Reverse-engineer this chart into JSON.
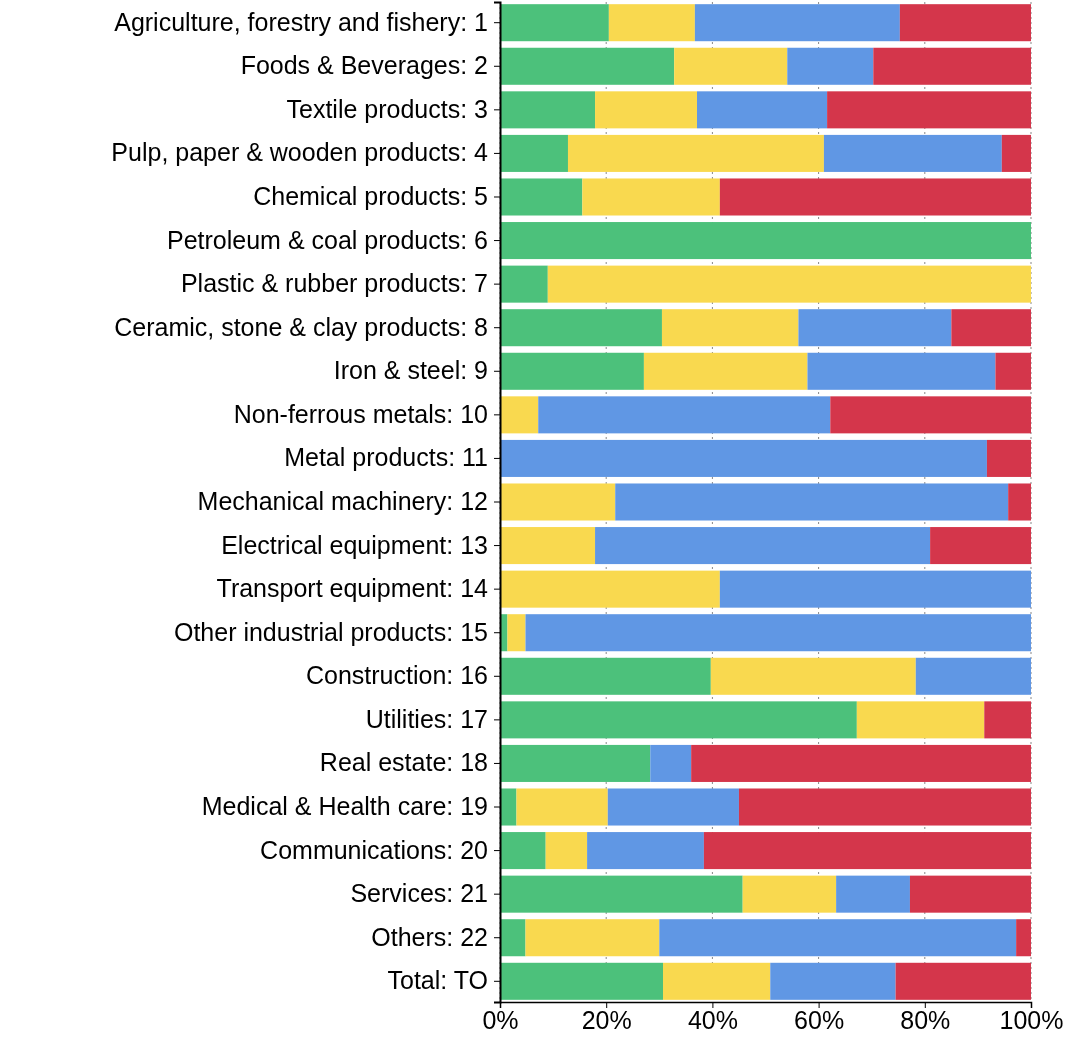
{
  "chart_data": {
    "type": "bar",
    "orientation": "horizontal",
    "stacked": true,
    "grid": "x",
    "categories": [
      "Agriculture, forestry and fishery:  1",
      "Foods & Beverages:  2",
      "Textile products:  3",
      "Pulp, paper & wooden products:  4",
      "Chemical products:  5",
      "Petroleum & coal products:  6",
      "Plastic & rubber products:  7",
      "Ceramic, stone & clay products:  8",
      "Iron & steel:  9",
      "Non-ferrous metals: 10",
      "Metal products: 11",
      "Mechanical machinery: 12",
      "Electrical equipment: 13",
      "Transport equipment: 14",
      "Other industrial products: 15",
      "Construction: 16",
      "Utilities: 17",
      "Real estate: 18",
      "Medical & Health care: 19",
      "Communications: 20",
      "Services: 21",
      "Others: 22",
      "Total: TO"
    ],
    "series": [
      {
        "color": "#4cc17b",
        "values": [
          20.5,
          32.8,
          17.9,
          12.8,
          15.5,
          100,
          9.0,
          30.5,
          27.1,
          0,
          0,
          0,
          0,
          0,
          1.4,
          39.7,
          67.2,
          28.3,
          3.1,
          8.6,
          45.7,
          4.8,
          30.7
        ]
      },
      {
        "color": "#f9d94f",
        "values": [
          16.2,
          21.3,
          19.2,
          48.2,
          25.9,
          0,
          91.0,
          25.7,
          30.8,
          7.2,
          0,
          21.7,
          17.9,
          41.4,
          3.4,
          38.6,
          24.0,
          0,
          17.2,
          7.8,
          17.6,
          25.2,
          20.2
        ]
      },
      {
        "color": "#6097e4",
        "values": [
          38.6,
          16.2,
          24.5,
          33.5,
          0,
          0,
          0,
          28.8,
          35.4,
          55.0,
          91.7,
          74.0,
          63.1,
          58.6,
          95.2,
          21.7,
          0,
          7.7,
          24.7,
          22.0,
          13.9,
          67.2,
          23.6
        ]
      },
      {
        "color": "#d4364b",
        "values": [
          24.7,
          29.7,
          38.4,
          5.5,
          58.6,
          0,
          0,
          15.0,
          6.7,
          37.8,
          8.3,
          4.3,
          19.0,
          0,
          0,
          0,
          8.8,
          64.0,
          55.0,
          61.6,
          22.8,
          2.8,
          25.5
        ]
      }
    ],
    "xlim": [
      0,
      100
    ],
    "xticks": [
      {
        "value": 0,
        "label": "0%"
      },
      {
        "value": 20,
        "label": "20%"
      },
      {
        "value": 40,
        "label": "40%"
      },
      {
        "value": 60,
        "label": "60%"
      },
      {
        "value": 80,
        "label": "80%"
      },
      {
        "value": 100,
        "label": "100%"
      }
    ]
  }
}
